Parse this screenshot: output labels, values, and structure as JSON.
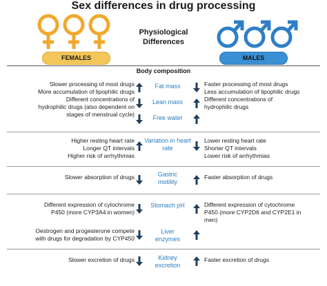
{
  "title": "Sex differences in drug processing",
  "subtitle": "Physiological Differences",
  "females_label": "FEMALES",
  "males_label": "MALES",
  "section_header": "Body composition",
  "colors": {
    "female": "#f3c65a",
    "female_symbol": "#f0a92e",
    "male": "#3b8fd4",
    "male_symbol": "#2e7ec6",
    "accent_text": "#2a7dbf",
    "arrow": "#1f3f5f"
  },
  "groups": [
    {
      "left": [
        "Slower processing of most drugs",
        "More accumulation of lipophilic drugs",
        "Different concentrations of",
        "hydrophilic drugs (also dependent on",
        "stages of menstrual cycle)"
      ],
      "factors": [
        {
          "label": "Fat mass",
          "left_arrow": "up",
          "right_arrow": "down"
        },
        {
          "label": "Lean mass",
          "left_arrow": "down",
          "right_arrow": "up"
        },
        {
          "label": "Free water",
          "left_arrow": "down",
          "right_arrow": "up"
        }
      ],
      "right": [
        "Faster processing of most drugs",
        "Less accumulation of lipophilic drugs",
        "Different concentrations of",
        "hydrophilic drugs"
      ]
    },
    {
      "left": [
        "Higher resting heart rate",
        "Longer QT intervals",
        "Higher risk of arrhythmias"
      ],
      "factors": [
        {
          "label": "Variation in heart rate",
          "left_arrow": "up",
          "right_arrow": "down"
        }
      ],
      "right": [
        "Lower resting heart rate",
        "Shorter QT intervals",
        "Lower risk of arrhythmias"
      ]
    },
    {
      "left": [
        "Slower absorption of drugs"
      ],
      "factors": [
        {
          "label": "Gastric motility",
          "left_arrow": "down",
          "right_arrow": "up"
        }
      ],
      "right": [
        "Faster absorption of drugs"
      ]
    },
    {
      "left": [
        "Different expression of cytochrome",
        "P450 (more CYP3A4 in women)"
      ],
      "factors": [
        {
          "label": "Stomach pH",
          "left_arrow": "down",
          "right_arrow": "up"
        }
      ],
      "right": [
        "Different expression of cytochrome",
        "P450 (more CYP2D6 and CYP2E1 in",
        "men)"
      ]
    },
    {
      "left": [
        "Oestrogen and progesterone compete",
        "with drugs for degradation by CYP450"
      ],
      "factors": [
        {
          "label": "Liver enzymes",
          "left_arrow": "down",
          "right_arrow": "up"
        }
      ],
      "right": []
    },
    {
      "left": [
        "Slower excretion of drugs"
      ],
      "factors": [
        {
          "label": "Kidney excretion",
          "left_arrow": "down",
          "right_arrow": "up"
        }
      ],
      "right": [
        "Faster excretion of drugs"
      ]
    }
  ]
}
